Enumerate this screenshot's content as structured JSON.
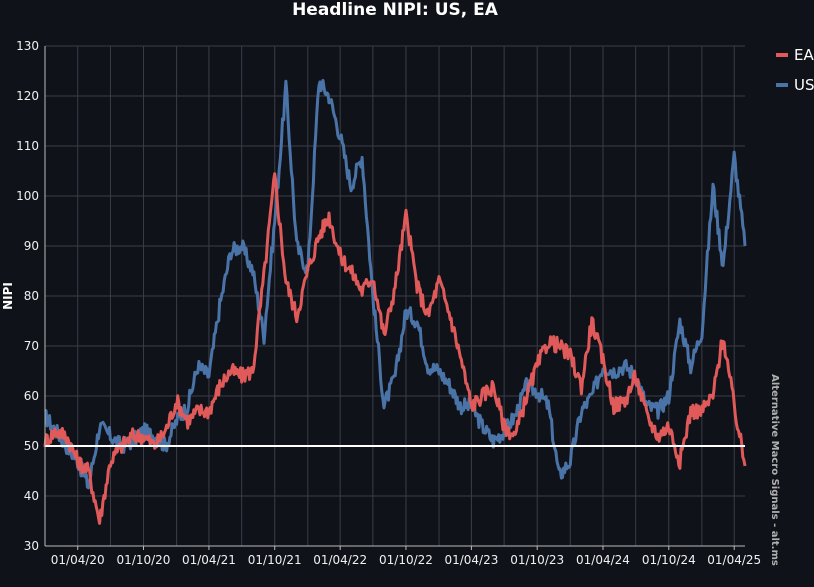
{
  "chart_data": {
    "type": "line",
    "title": "Headline NIPI: US, EA",
    "xlabel": "",
    "ylabel": "NIPI",
    "ylim": [
      30,
      130
    ],
    "yticks": [
      "30",
      "40",
      "50",
      "60",
      "70",
      "80",
      "90",
      "100",
      "110",
      "120",
      "130"
    ],
    "xticks": [
      "01/04/20",
      "01/10/20",
      "01/04/21",
      "01/10/21",
      "01/04/22",
      "01/10/22",
      "01/04/23",
      "01/10/23",
      "01/04/24",
      "01/10/24",
      "01/04/25"
    ],
    "x_dates": [
      "2020-01-01",
      "2020-02-01",
      "2020-03-01",
      "2020-04-01",
      "2020-05-01",
      "2020-06-01",
      "2020-07-01",
      "2020-08-01",
      "2020-09-01",
      "2020-10-01",
      "2020-11-01",
      "2020-12-01",
      "2021-01-01",
      "2021-02-01",
      "2021-03-01",
      "2021-04-01",
      "2021-05-01",
      "2021-06-01",
      "2021-07-01",
      "2021-08-01",
      "2021-09-01",
      "2021-10-01",
      "2021-11-01",
      "2021-12-01",
      "2022-01-01",
      "2022-02-01",
      "2022-03-01",
      "2022-04-01",
      "2022-05-01",
      "2022-06-01",
      "2022-07-01",
      "2022-08-01",
      "2022-09-01",
      "2022-10-01",
      "2022-11-01",
      "2022-12-01",
      "2023-01-01",
      "2023-02-01",
      "2023-03-01",
      "2023-04-01",
      "2023-05-01",
      "2023-06-01",
      "2023-07-01",
      "2023-08-01",
      "2023-09-01",
      "2023-10-01",
      "2023-11-01",
      "2023-12-01",
      "2024-01-01",
      "2024-02-01",
      "2024-03-01",
      "2024-04-01",
      "2024-05-01",
      "2024-06-01",
      "2024-07-01",
      "2024-08-01",
      "2024-09-01",
      "2024-10-01",
      "2024-11-01",
      "2024-12-01",
      "2025-01-01",
      "2025-02-01",
      "2025-03-01",
      "2025-04-01",
      "2025-05-01"
    ],
    "series": [
      {
        "name": "EA",
        "color": "#e05a5a",
        "values": [
          51,
          53,
          52,
          47,
          45,
          35,
          47,
          50,
          52,
          52,
          50,
          53,
          59,
          55,
          57,
          57,
          62,
          65,
          64,
          65,
          84,
          104,
          83,
          76,
          85,
          92,
          96,
          88,
          85,
          81,
          84,
          72,
          82,
          96,
          82,
          76,
          83,
          76,
          68,
          58,
          60,
          62,
          54,
          52,
          60,
          66,
          71,
          70,
          68,
          62,
          75,
          67,
          58,
          59,
          64,
          56,
          52,
          54,
          47,
          57,
          57,
          60,
          72,
          58,
          46
        ]
      },
      {
        "name": "US",
        "color": "#4a74a8",
        "values": [
          56,
          53,
          50,
          47,
          42,
          54,
          52,
          50,
          51,
          53,
          52,
          50,
          55,
          58,
          66,
          64,
          78,
          89,
          90,
          85,
          72,
          95,
          122,
          90,
          85,
          123,
          120,
          112,
          102,
          108,
          80,
          58,
          64,
          77,
          75,
          66,
          65,
          62,
          58,
          58,
          54,
          51,
          53,
          56,
          62,
          61,
          58,
          44,
          47,
          57,
          60,
          66,
          65,
          66,
          64,
          58,
          57,
          60,
          75,
          66,
          73,
          102,
          86,
          108,
          90
        ]
      }
    ],
    "hline": 50,
    "legend_position": "top-right",
    "grid": true
  },
  "watermark": "Alternative Macro Signals - alt.ms"
}
